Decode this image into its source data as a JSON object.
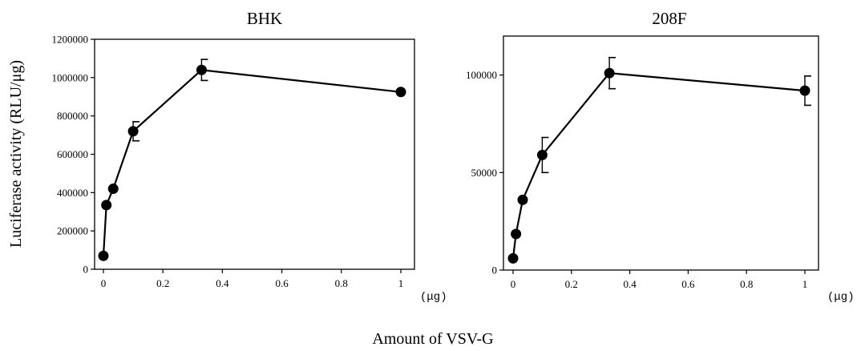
{
  "figure": {
    "ylabel": "Luciferase activity (RLU/μg)",
    "xlabel": "Amount of VSV-G"
  },
  "chart_data": [
    {
      "type": "line",
      "title": "BHK",
      "x_unit": "(μg)",
      "xlim": [
        0,
        1
      ],
      "ylim": [
        0,
        1200000
      ],
      "xticks": [
        "0",
        "0.2",
        "0.4",
        "0.6",
        "0.8",
        "1"
      ],
      "yticks": [
        "0",
        "200000",
        "400000",
        "600000",
        "800000",
        "1000000",
        "1200000"
      ],
      "grid": false,
      "series": [
        {
          "x": [
            0,
            0.01,
            0.033,
            0.1,
            0.33,
            1
          ],
          "y": [
            70000,
            335000,
            420000,
            720000,
            1040000,
            925000
          ],
          "err": [
            0,
            0,
            0,
            50000,
            55000,
            0
          ]
        }
      ]
    },
    {
      "type": "line",
      "title": "208F",
      "x_unit": "(μg)",
      "xlim": [
        0,
        1
      ],
      "ylim": [
        0,
        120000
      ],
      "xticks": [
        "0",
        "0.2",
        "0.4",
        "0.6",
        "0.8",
        "1"
      ],
      "yticks": [
        "0",
        "50000",
        "100000"
      ],
      "grid": false,
      "series": [
        {
          "x": [
            0,
            0.01,
            0.033,
            0.1,
            0.33,
            1
          ],
          "y": [
            6000,
            18500,
            36000,
            59000,
            101000,
            92000
          ],
          "err": [
            0,
            0,
            0,
            9000,
            8000,
            7500
          ]
        }
      ]
    }
  ]
}
